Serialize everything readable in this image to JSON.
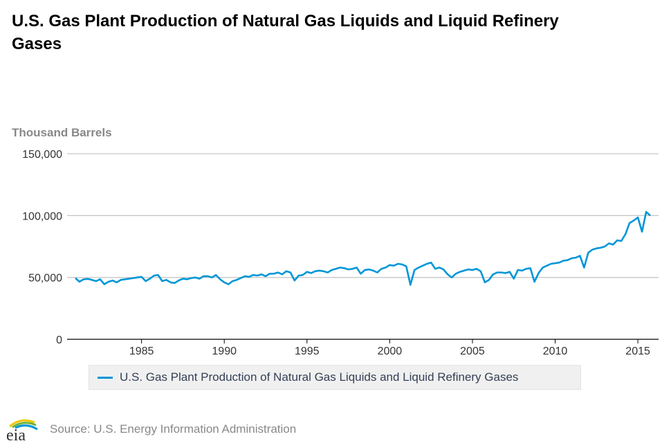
{
  "chart_data": {
    "type": "line",
    "title": "U.S. Gas Plant Production of Natural Gas Liquids and Liquid Refinery Gases",
    "ylabel": "Thousand Barrels",
    "xlabel": "",
    "ylim": [
      0,
      150000
    ],
    "xlim": [
      "1981-01",
      "2015-10"
    ],
    "yticks": [
      "0",
      "50,000",
      "100,000",
      "150,000"
    ],
    "ytick_values": [
      0,
      50000,
      100000,
      150000
    ],
    "xticks": [
      "1985",
      "1990",
      "1995",
      "2000",
      "2005",
      "2010",
      "2015"
    ],
    "grid": true,
    "legend_position": "bottom",
    "series": [
      {
        "name": "U.S. Gas Plant Production of Natural Gas Liquids and Liquid Refinery Gases",
        "color": "#0096d7",
        "x": [
          "1981-01",
          "1981-04",
          "1981-07",
          "1981-10",
          "1982-01",
          "1982-04",
          "1982-07",
          "1982-10",
          "1983-01",
          "1983-04",
          "1983-07",
          "1983-10",
          "1984-01",
          "1984-04",
          "1984-07",
          "1984-10",
          "1985-01",
          "1985-04",
          "1985-07",
          "1985-10",
          "1986-01",
          "1986-04",
          "1986-07",
          "1986-10",
          "1987-01",
          "1987-04",
          "1987-07",
          "1987-10",
          "1988-01",
          "1988-04",
          "1988-07",
          "1988-10",
          "1989-01",
          "1989-04",
          "1989-07",
          "1989-10",
          "1990-01",
          "1990-04",
          "1990-07",
          "1990-10",
          "1991-01",
          "1991-04",
          "1991-07",
          "1991-10",
          "1992-01",
          "1992-04",
          "1992-07",
          "1992-10",
          "1993-01",
          "1993-04",
          "1993-07",
          "1993-10",
          "1994-01",
          "1994-04",
          "1994-07",
          "1994-10",
          "1995-01",
          "1995-04",
          "1995-07",
          "1995-10",
          "1996-01",
          "1996-04",
          "1996-07",
          "1996-10",
          "1997-01",
          "1997-04",
          "1997-07",
          "1997-10",
          "1998-01",
          "1998-04",
          "1998-07",
          "1998-10",
          "1999-01",
          "1999-04",
          "1999-07",
          "1999-10",
          "2000-01",
          "2000-04",
          "2000-07",
          "2000-10",
          "2001-01",
          "2001-04",
          "2001-07",
          "2001-10",
          "2002-01",
          "2002-04",
          "2002-07",
          "2002-10",
          "2003-01",
          "2003-04",
          "2003-07",
          "2003-10",
          "2004-01",
          "2004-04",
          "2004-07",
          "2004-10",
          "2005-01",
          "2005-04",
          "2005-07",
          "2005-10",
          "2006-01",
          "2006-04",
          "2006-07",
          "2006-10",
          "2007-01",
          "2007-04",
          "2007-07",
          "2007-10",
          "2008-01",
          "2008-04",
          "2008-07",
          "2008-10",
          "2009-01",
          "2009-04",
          "2009-07",
          "2009-10",
          "2010-01",
          "2010-04",
          "2010-07",
          "2010-10",
          "2011-01",
          "2011-04",
          "2011-07",
          "2011-10",
          "2012-01",
          "2012-04",
          "2012-07",
          "2012-10",
          "2013-01",
          "2013-04",
          "2013-07",
          "2013-10",
          "2014-01",
          "2014-04",
          "2014-07",
          "2014-10",
          "2015-01",
          "2015-04",
          "2015-07",
          "2015-10"
        ],
        "values": [
          49500,
          46500,
          48500,
          48800,
          48000,
          47000,
          48500,
          44500,
          46500,
          47500,
          46000,
          48000,
          48500,
          49000,
          49500,
          50000,
          50500,
          47000,
          49000,
          51500,
          52000,
          47000,
          48000,
          46000,
          45500,
          47500,
          49000,
          48500,
          49500,
          50000,
          49000,
          51000,
          51000,
          50000,
          52000,
          48500,
          46000,
          44500,
          47000,
          48000,
          49500,
          51000,
          50500,
          52000,
          51500,
          52500,
          51000,
          53000,
          53000,
          54000,
          52500,
          55000,
          54000,
          47500,
          51500,
          52000,
          54500,
          53500,
          55000,
          55500,
          55000,
          54000,
          56000,
          57000,
          58000,
          57500,
          56500,
          57000,
          58000,
          53000,
          56000,
          56500,
          55500,
          54000,
          57000,
          58000,
          60000,
          59500,
          61000,
          60500,
          59000,
          44000,
          56000,
          58000,
          59500,
          61000,
          62000,
          57000,
          58000,
          56500,
          52500,
          50000,
          53000,
          54500,
          55500,
          56500,
          56000,
          57000,
          55000,
          46000,
          48000,
          52500,
          54000,
          54000,
          53500,
          54500,
          49000,
          56000,
          55500,
          57000,
          57500,
          46500,
          53500,
          58000,
          59500,
          61000,
          61500,
          62000,
          63500,
          64000,
          65500,
          66000,
          67500,
          58000,
          70000,
          72500,
          73500,
          74000,
          75000,
          77500,
          76500,
          80000,
          79500,
          85000,
          94000,
          96000,
          98500,
          87000,
          103000,
          100000
        ]
      }
    ]
  },
  "legend": {
    "label": "U.S. Gas Plant Production of Natural Gas Liquids and Liquid Refinery Gases"
  },
  "footer": {
    "logo_text": "eia",
    "source": "Source: U.S. Energy Information Administration"
  }
}
